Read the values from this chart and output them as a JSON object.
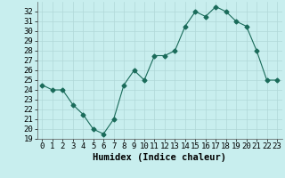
{
  "x": [
    0,
    1,
    2,
    3,
    4,
    5,
    6,
    7,
    8,
    9,
    10,
    11,
    12,
    13,
    14,
    15,
    16,
    17,
    18,
    19,
    20,
    21,
    22,
    23
  ],
  "y": [
    24.5,
    24.0,
    24.0,
    22.5,
    21.5,
    20.0,
    19.5,
    21.0,
    24.5,
    26.0,
    25.0,
    27.5,
    27.5,
    28.0,
    30.5,
    32.0,
    31.5,
    32.5,
    32.0,
    31.0,
    30.5,
    28.0,
    25.0,
    25.0
  ],
  "xlabel": "Humidex (Indice chaleur)",
  "ylim": [
    19,
    33
  ],
  "xlim": [
    -0.5,
    23.5
  ],
  "yticks": [
    19,
    20,
    21,
    22,
    23,
    24,
    25,
    26,
    27,
    28,
    29,
    30,
    31,
    32
  ],
  "xticks": [
    0,
    1,
    2,
    3,
    4,
    5,
    6,
    7,
    8,
    9,
    10,
    11,
    12,
    13,
    14,
    15,
    16,
    17,
    18,
    19,
    20,
    21,
    22,
    23
  ],
  "line_color": "#1a6b5a",
  "marker": "D",
  "marker_size": 2.5,
  "bg_color": "#c8eeee",
  "grid_color": "#b0d8d8",
  "xlabel_fontsize": 7.5,
  "tick_fontsize": 6.5
}
